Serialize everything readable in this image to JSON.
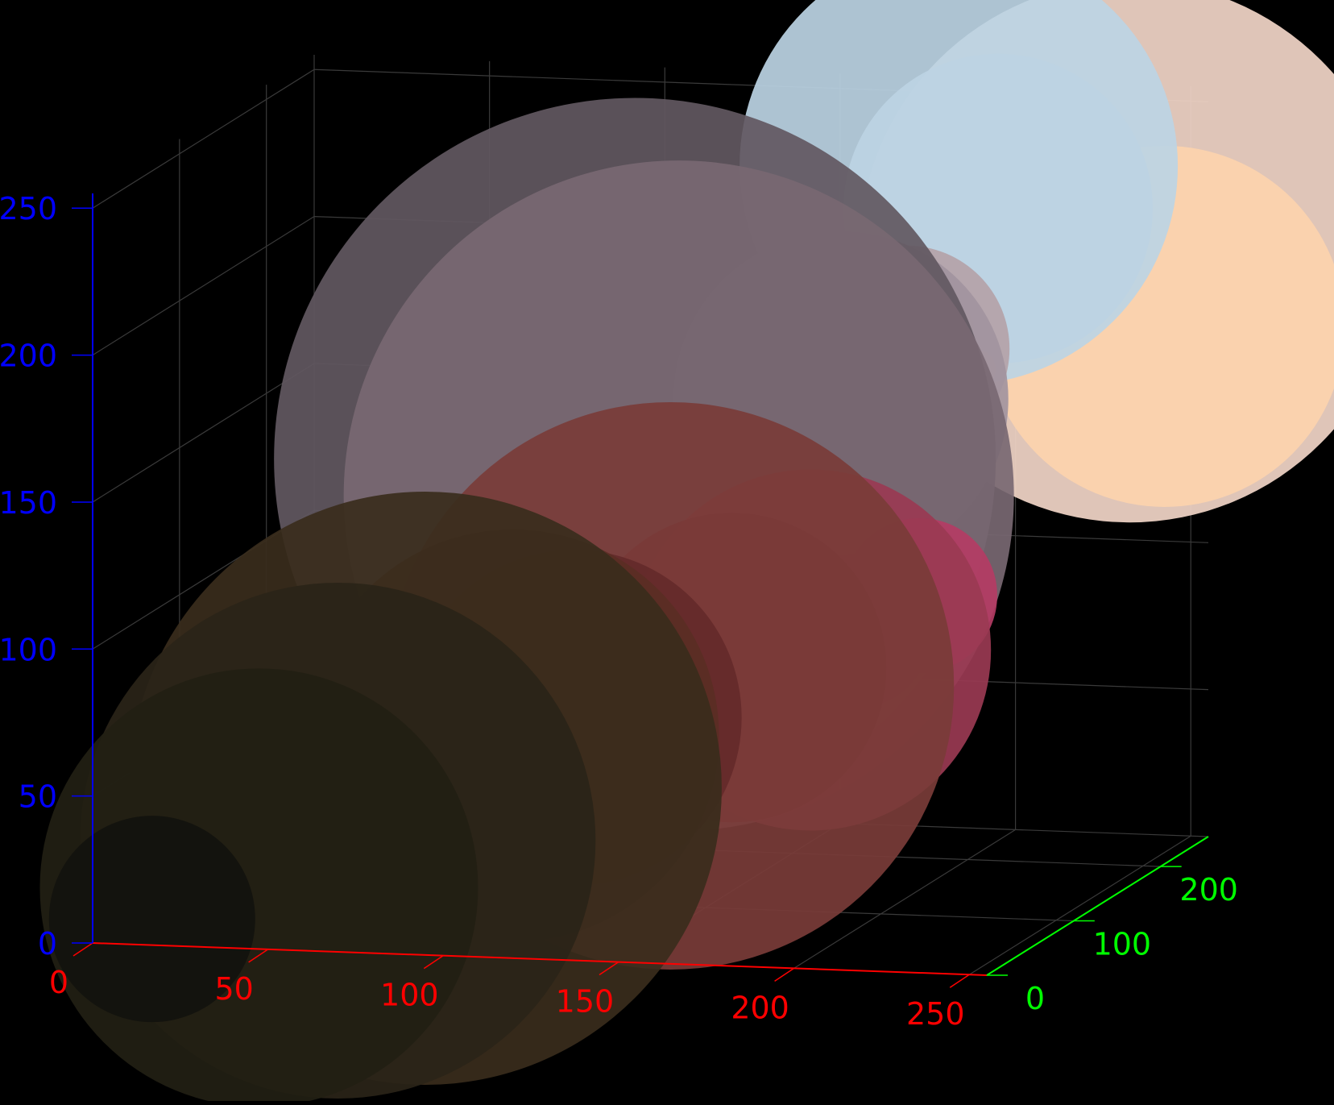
{
  "chart_data": {
    "type": "scatter",
    "variant": "3d-bubble",
    "title": "",
    "background": "#000000",
    "grid": true,
    "grid_color": "#3a3a3a",
    "axes": {
      "x": {
        "color": "#ff0000",
        "range": [
          0,
          255
        ],
        "ticks": [
          0,
          50,
          100,
          150,
          200,
          250
        ],
        "tick_labels": [
          "0",
          "50",
          "100",
          "150",
          "200",
          "250"
        ]
      },
      "y": {
        "color": "#00ff00",
        "range": [
          0,
          255
        ],
        "ticks": [
          0,
          100,
          200
        ],
        "tick_labels": [
          "0",
          "100",
          "200"
        ]
      },
      "z": {
        "color": "#0000ff",
        "range": [
          0,
          255
        ],
        "ticks": [
          0,
          50,
          100,
          150,
          200,
          250
        ],
        "tick_labels": [
          "0",
          "50",
          "100",
          "150",
          "200",
          "250"
        ]
      }
    },
    "marker_opacity": 0.92,
    "points": [
      {
        "x": 12,
        "y": 20,
        "z": 5,
        "size": 1.6,
        "color": "#12120e"
      },
      {
        "x": 40,
        "y": 30,
        "z": 15,
        "size": 3.4,
        "color": "#221f14"
      },
      {
        "x": 60,
        "y": 40,
        "z": 30,
        "size": 4.0,
        "color": "#2a2418"
      },
      {
        "x": 80,
        "y": 60,
        "z": 45,
        "size": 4.6,
        "color": "#3a2c1c"
      },
      {
        "x": 100,
        "y": 80,
        "z": 60,
        "size": 3.2,
        "color": "#5a2e24"
      },
      {
        "x": 115,
        "y": 90,
        "z": 65,
        "size": 2.6,
        "color": "#642a2a"
      },
      {
        "x": 140,
        "y": 100,
        "z": 75,
        "size": 4.4,
        "color": "#7a3c38"
      },
      {
        "x": 155,
        "y": 110,
        "z": 80,
        "size": 2.4,
        "color": "#7a2a36"
      },
      {
        "x": 175,
        "y": 120,
        "z": 85,
        "size": 2.8,
        "color": "#9a3a52"
      },
      {
        "x": 185,
        "y": 130,
        "z": 90,
        "size": 1.2,
        "color": "#9a2a4c"
      },
      {
        "x": 200,
        "y": 145,
        "z": 100,
        "size": 1.2,
        "color": "#b43c64"
      },
      {
        "x": 130,
        "y": 150,
        "z": 130,
        "size": 5.2,
        "color": "#786872"
      },
      {
        "x": 115,
        "y": 160,
        "z": 140,
        "size": 5.6,
        "color": "#625861"
      },
      {
        "x": 170,
        "y": 175,
        "z": 160,
        "size": 2.6,
        "color": "#a2949e"
      },
      {
        "x": 185,
        "y": 190,
        "z": 175,
        "size": 1.6,
        "color": "#b4a2a8"
      },
      {
        "x": 195,
        "y": 205,
        "z": 180,
        "size": 0.3,
        "color": "#c8a48c"
      },
      {
        "x": 200,
        "y": 210,
        "z": 165,
        "size": 0.3,
        "color": "#d8b494"
      },
      {
        "x": 190,
        "y": 230,
        "z": 230,
        "size": 3.4,
        "color": "#bcd4e4"
      },
      {
        "x": 200,
        "y": 235,
        "z": 215,
        "size": 2.4,
        "color": "#c2c8d8"
      },
      {
        "x": 235,
        "y": 245,
        "z": 200,
        "size": 4.2,
        "color": "#f2d6c8"
      },
      {
        "x": 245,
        "y": 245,
        "z": 175,
        "size": 2.8,
        "color": "#fcd2ac"
      }
    ]
  }
}
